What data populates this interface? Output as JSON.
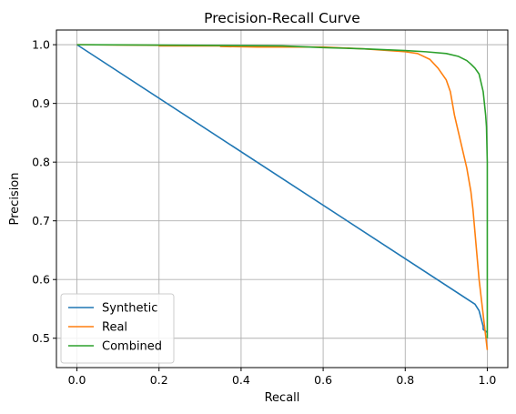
{
  "chart_data": {
    "type": "line",
    "title": "Precision-Recall Curve",
    "xlabel": "Recall",
    "ylabel": "Precision",
    "xlim": [
      -0.05,
      1.05
    ],
    "ylim": [
      0.45,
      1.025
    ],
    "xticks": [
      0.0,
      0.2,
      0.4,
      0.6,
      0.8,
      1.0
    ],
    "xtick_labels": [
      "0.0",
      "0.2",
      "0.4",
      "0.6",
      "0.8",
      "1.0"
    ],
    "yticks": [
      0.5,
      0.6,
      0.7,
      0.8,
      0.9,
      1.0
    ],
    "ytick_labels": [
      "0.5",
      "0.6",
      "0.7",
      "0.8",
      "0.9",
      "1.0"
    ],
    "grid": true,
    "legend_position": "lower-left",
    "series": [
      {
        "name": "Synthetic",
        "color": "#1f77b4",
        "x": [
          0.0,
          0.97,
          0.98,
          0.99,
          0.99,
          1.0
        ],
        "y": [
          1.0,
          0.558,
          0.547,
          0.52,
          0.515,
          0.51
        ]
      },
      {
        "name": "Real",
        "color": "#ff7f0e",
        "x": [
          0.0,
          0.2,
          0.2,
          0.35,
          0.35,
          0.44,
          0.6,
          0.7,
          0.76,
          0.8,
          0.83,
          0.86,
          0.88,
          0.9,
          0.91,
          0.92,
          0.93,
          0.94,
          0.95,
          0.96,
          0.965,
          0.97,
          0.975,
          0.98,
          0.985,
          0.99,
          0.995,
          1.0
        ],
        "y": [
          1.0,
          0.999,
          0.998,
          0.998,
          0.997,
          0.996,
          0.996,
          0.993,
          0.99,
          0.988,
          0.985,
          0.975,
          0.96,
          0.94,
          0.92,
          0.88,
          0.85,
          0.82,
          0.79,
          0.75,
          0.72,
          0.68,
          0.64,
          0.6,
          0.57,
          0.54,
          0.51,
          0.48
        ]
      },
      {
        "name": "Combined",
        "color": "#2ca02c",
        "x": [
          0.0,
          0.3,
          0.5,
          0.6,
          0.7,
          0.8,
          0.85,
          0.9,
          0.93,
          0.95,
          0.96,
          0.97,
          0.98,
          0.985,
          0.99,
          0.993,
          0.996,
          0.998,
          0.999,
          1.0,
          1.0,
          1.0,
          1.0
        ],
        "y": [
          1.0,
          0.999,
          0.998,
          0.995,
          0.993,
          0.99,
          0.988,
          0.985,
          0.98,
          0.973,
          0.967,
          0.96,
          0.95,
          0.935,
          0.92,
          0.9,
          0.88,
          0.86,
          0.83,
          0.8,
          0.7,
          0.6,
          0.5
        ]
      }
    ]
  }
}
